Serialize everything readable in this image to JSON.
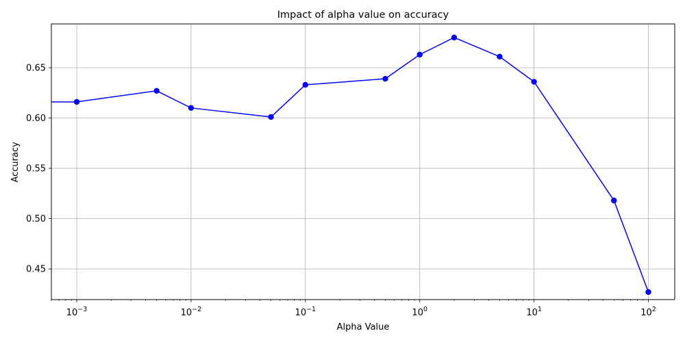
{
  "chart_data": {
    "type": "line",
    "title": "Impact of alpha value on accuracy",
    "xlabel": "Alpha Value",
    "ylabel": "Accuracy",
    "x_scale": "log",
    "xlim": [
      0.0006,
      170
    ],
    "ylim": [
      0.4195,
      0.6935
    ],
    "grid": true,
    "x_ticks": [
      {
        "value": 0.001,
        "base": "10",
        "exp": "−3"
      },
      {
        "value": 0.01,
        "base": "10",
        "exp": "−2"
      },
      {
        "value": 0.1,
        "base": "10",
        "exp": "−1"
      },
      {
        "value": 1,
        "base": "10",
        "exp": "0"
      },
      {
        "value": 10,
        "base": "10",
        "exp": "1"
      },
      {
        "value": 100,
        "base": "10",
        "exp": "2"
      }
    ],
    "y_ticks": [
      {
        "value": 0.45,
        "label": "0.45"
      },
      {
        "value": 0.5,
        "label": "0.50"
      },
      {
        "value": 0.55,
        "label": "0.55"
      },
      {
        "value": 0.6,
        "label": "0.60"
      },
      {
        "value": 0.65,
        "label": "0.65"
      }
    ],
    "series": [
      {
        "color": "#0000ff",
        "marker": "circle",
        "x": [
          0.0001,
          0.001,
          0.005,
          0.01,
          0.05,
          0.1,
          0.5,
          1,
          2,
          5,
          10,
          50,
          100
        ],
        "y": [
          0.616,
          0.616,
          0.627,
          0.61,
          0.601,
          0.633,
          0.639,
          0.663,
          0.68,
          0.661,
          0.636,
          0.518,
          0.427
        ]
      }
    ]
  }
}
